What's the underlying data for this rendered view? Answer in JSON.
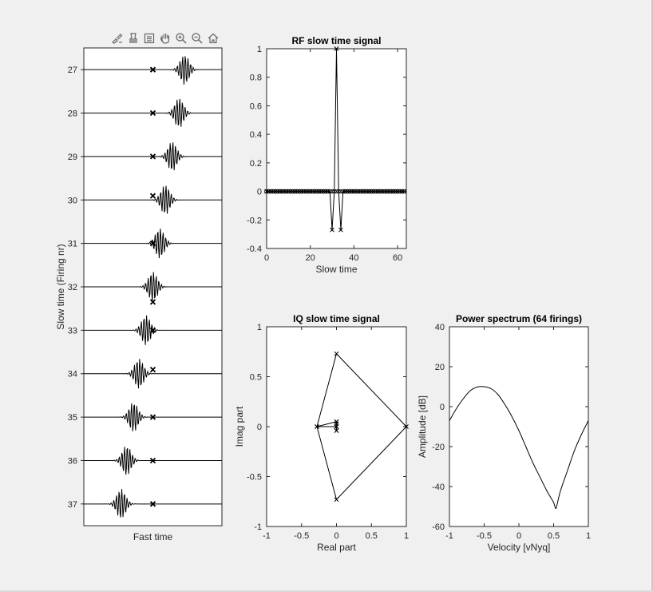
{
  "toolbar": {
    "icons": [
      "brush-icon",
      "data-tip-icon",
      "legend-icon",
      "pan-icon",
      "zoom-in-icon",
      "zoom-out-icon",
      "home-icon"
    ]
  },
  "chart_data": [
    {
      "type": "line",
      "title": "",
      "xlabel": "Fast time",
      "ylabel": "Slow time (Firing nr)",
      "yticks": [
        "27",
        "28",
        "29",
        "30",
        "31",
        "32",
        "33",
        "34",
        "35",
        "36",
        "37"
      ],
      "ylim": [
        26.5,
        37.5
      ],
      "series": [
        {
          "firing": 27,
          "pulse_center": 0.73,
          "marker_offset": 0.0
        },
        {
          "firing": 28,
          "pulse_center": 0.69,
          "marker_offset": 0.0
        },
        {
          "firing": 29,
          "pulse_center": 0.64,
          "marker_offset": 0.0
        },
        {
          "firing": 30,
          "pulse_center": 0.59,
          "marker_offset": 0.27
        },
        {
          "firing": 31,
          "pulse_center": 0.55,
          "marker_offset": 0.0
        },
        {
          "firing": 32,
          "pulse_center": 0.5,
          "marker_offset": -1.0
        },
        {
          "firing": 33,
          "pulse_center": 0.45,
          "marker_offset": 0.0
        },
        {
          "firing": 34,
          "pulse_center": 0.4,
          "marker_offset": 0.27
        },
        {
          "firing": 35,
          "pulse_center": 0.36,
          "marker_offset": 0.0
        },
        {
          "firing": 36,
          "pulse_center": 0.31,
          "marker_offset": 0.0
        },
        {
          "firing": 37,
          "pulse_center": 0.27,
          "marker_offset": 0.0
        }
      ],
      "marker_x": 0.5
    },
    {
      "type": "line",
      "title": "RF slow time signal",
      "xlabel": "Slow time",
      "ylabel": "",
      "xlim": [
        0,
        64
      ],
      "ylim": [
        -0.4,
        1
      ],
      "xticks": [
        "0",
        "20",
        "40",
        "60"
      ],
      "yticks": [
        "-0.4",
        "-0.2",
        "0",
        "0.2",
        "0.4",
        "0.6",
        "0.8",
        "1"
      ],
      "x": [
        0,
        1,
        2,
        3,
        4,
        5,
        6,
        7,
        8,
        9,
        10,
        11,
        12,
        13,
        14,
        15,
        16,
        17,
        18,
        19,
        20,
        21,
        22,
        23,
        24,
        25,
        26,
        27,
        28,
        29,
        30,
        31,
        32,
        33,
        34,
        35,
        36,
        37,
        38,
        39,
        40,
        41,
        42,
        43,
        44,
        45,
        46,
        47,
        48,
        49,
        50,
        51,
        52,
        53,
        54,
        55,
        56,
        57,
        58,
        59,
        60,
        61,
        62,
        63
      ],
      "values": [
        0,
        0,
        0,
        0,
        0,
        0,
        0,
        0,
        0,
        0,
        0,
        0,
        0,
        0,
        0,
        0,
        0,
        0,
        0,
        0,
        0,
        0,
        0,
        0,
        0,
        0,
        0,
        0,
        0,
        0,
        -0.27,
        0,
        1,
        0,
        -0.27,
        0,
        0,
        0,
        0,
        0,
        0,
        0,
        0,
        0,
        0,
        0,
        0,
        0,
        0,
        0,
        0,
        0,
        0,
        0,
        0,
        0,
        0,
        0,
        0,
        0,
        0,
        0,
        0,
        0
      ],
      "markers": [
        "x",
        "o"
      ]
    },
    {
      "type": "line",
      "title": "IQ slow time signal",
      "xlabel": "Real part",
      "ylabel": "Imag part",
      "xlim": [
        -1,
        1
      ],
      "ylim": [
        -1,
        1
      ],
      "xticks": [
        "-1",
        "-0.5",
        "0",
        "0.5",
        "1"
      ],
      "yticks": [
        "-1",
        "-0.5",
        "0",
        "0.5",
        "1"
      ],
      "x": [
        0,
        0,
        0,
        0,
        0,
        -0.28,
        0,
        1,
        0,
        -0.28,
        0,
        0,
        0
      ],
      "y": [
        0,
        0.05,
        -0.04,
        0.03,
        0,
        0,
        0.73,
        0,
        -0.73,
        0,
        0.05,
        -0.04,
        0
      ]
    },
    {
      "type": "line",
      "title": "Power spectrum (64 firings)",
      "xlabel": "Velocity [vNyq]",
      "ylabel": "Amplitude [dB]",
      "xlim": [
        -1,
        1
      ],
      "ylim": [
        -60,
        40
      ],
      "xticks": [
        "-1",
        "-0.5",
        "0",
        "0.5",
        "1"
      ],
      "yticks": [
        "-60",
        "-40",
        "-20",
        "0",
        "20",
        "40"
      ],
      "x": [
        -1.0,
        -0.9,
        -0.8,
        -0.7,
        -0.6,
        -0.5,
        -0.4,
        -0.3,
        -0.2,
        -0.1,
        0.0,
        0.1,
        0.2,
        0.3,
        0.4,
        0.45,
        0.5,
        0.53,
        0.55,
        0.6,
        0.7,
        0.8,
        0.9,
        1.0
      ],
      "values": [
        -7,
        -1,
        4,
        8,
        9.8,
        10,
        9,
        6,
        1,
        -5,
        -12,
        -20,
        -28,
        -35,
        -42,
        -45,
        -48,
        -51,
        -49,
        -42,
        -32,
        -22,
        -14,
        -7
      ]
    }
  ]
}
